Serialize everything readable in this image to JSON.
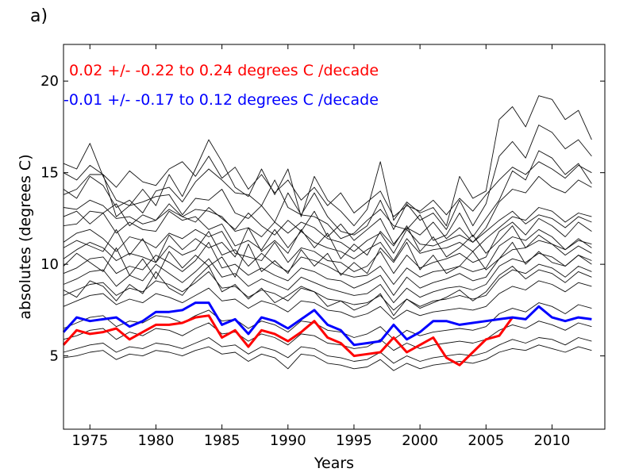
{
  "panel_label": "a)",
  "colors": {
    "red": "#ff0000",
    "blue": "#0000ff",
    "gray": "#111111",
    "axes": "#000000"
  },
  "chart_data": {
    "type": "line",
    "xlabel": "Years",
    "ylabel": "absolutes (degrees C)",
    "xlim": [
      1973,
      2014
    ],
    "ylim": [
      1,
      22
    ],
    "xticks": [
      1975,
      1980,
      1985,
      1990,
      1995,
      2000,
      2005,
      2010
    ],
    "yticks": [
      5,
      10,
      15,
      20
    ],
    "annotations": [
      {
        "text": "0.02 +/- -0.22 to  0.24 degrees C /decade",
        "color": "#ff0000"
      },
      {
        "text": "-0.01 +/- -0.17 to  0.12 degrees C /decade",
        "color": "#0000ff"
      }
    ],
    "x": [
      1973,
      1974,
      1975,
      1976,
      1977,
      1978,
      1979,
      1980,
      1981,
      1982,
      1983,
      1984,
      1985,
      1986,
      1987,
      1988,
      1989,
      1990,
      1991,
      1992,
      1993,
      1994,
      1995,
      1996,
      1997,
      1998,
      1999,
      2000,
      2001,
      2002,
      2003,
      2004,
      2005,
      2006,
      2007,
      2008,
      2009,
      2010,
      2011,
      2012,
      2013
    ],
    "series": [
      {
        "color": "#ff0000",
        "highlight": true,
        "values": [
          5.6,
          6.4,
          6.2,
          6.3,
          6.5,
          5.9,
          6.3,
          6.7,
          6.7,
          6.8,
          7.1,
          7.2,
          6.0,
          6.4,
          5.5,
          6.4,
          6.2,
          5.8,
          6.3,
          6.9,
          6.0,
          5.7,
          5.0,
          5.1,
          5.2,
          6.0,
          5.2,
          5.6,
          6.0,
          4.9,
          4.5,
          5.2,
          5.9,
          6.1,
          7.1,
          null,
          null,
          null,
          null,
          null,
          null
        ]
      },
      {
        "color": "#0000ff",
        "highlight": true,
        "values": [
          6.3,
          7.1,
          6.9,
          7.0,
          7.1,
          6.6,
          6.9,
          7.4,
          7.4,
          7.5,
          7.9,
          7.9,
          6.7,
          7.0,
          6.2,
          7.1,
          6.9,
          6.5,
          7.0,
          7.5,
          6.7,
          6.4,
          5.6,
          5.7,
          5.8,
          6.7,
          5.9,
          6.3,
          6.9,
          6.9,
          6.7,
          6.8,
          6.9,
          7.0,
          7.1,
          7.0,
          7.7,
          7.1,
          6.9,
          7.1,
          7.0
        ]
      },
      {
        "color": "#111111",
        "values": [
          15.5,
          15.2,
          16.6,
          14.8,
          13.5,
          13.2,
          14.1,
          13.2,
          14.9,
          13.7,
          15.2,
          16.8,
          15.6,
          14.2,
          13.7,
          15.2,
          13.8,
          15.2,
          12.6,
          14.8,
          13.5,
          12.9,
          12.1,
          13.0,
          15.6,
          12.4,
          13.4,
          12.8,
          13.1,
          12.1,
          14.8,
          13.6,
          14.0,
          17.9,
          18.6,
          17.5,
          19.2,
          19.0,
          17.9,
          18.4,
          16.8
        ]
      },
      {
        "color": "#111111",
        "values": [
          14.1,
          13.6,
          14.8,
          14.3,
          13.1,
          13.5,
          12.8,
          14.0,
          14.2,
          13.4,
          14.5,
          15.2,
          14.6,
          13.9,
          13.8,
          13.2,
          14.6,
          13.1,
          12.7,
          13.9,
          12.6,
          11.8,
          11.6,
          12.1,
          13.5,
          11.9,
          13.3,
          12.4,
          12.8,
          11.9,
          13.5,
          12.1,
          13.3,
          15.9,
          16.7,
          15.8,
          17.6,
          17.2,
          16.3,
          16.8,
          15.9
        ]
      },
      {
        "color": "#111111",
        "values": [
          13.8,
          14.1,
          14.9,
          14.9,
          12.6,
          13.2,
          13.4,
          13.7,
          13.8,
          12.7,
          13.6,
          13.5,
          14.1,
          12.8,
          12.5,
          13.2,
          12.3,
          13.9,
          12.7,
          12.6,
          12.2,
          11.4,
          11.7,
          12.4,
          13.0,
          12.1,
          11.9,
          12.7,
          11.3,
          11.6,
          12.8,
          11.5,
          12.5,
          13.5,
          15.1,
          14.6,
          16.2,
          15.8,
          14.9,
          15.5,
          14.4
        ]
      },
      {
        "color": "#111111",
        "values": [
          13.1,
          13.0,
          13.5,
          13.2,
          12.5,
          12.6,
          12.2,
          12.4,
          13.3,
          12.6,
          13.0,
          12.9,
          12.6,
          11.8,
          12.0,
          11.5,
          12.3,
          11.7,
          12.3,
          12.0,
          11.4,
          11.2,
          10.7,
          11.3,
          11.7,
          10.6,
          11.9,
          11.1,
          11.0,
          11.3,
          11.6,
          11.2,
          12.0,
          13.4,
          14.1,
          13.9,
          14.8,
          14.2,
          13.9,
          14.6,
          14.2
        ]
      },
      {
        "color": "#111111",
        "values": [
          12.1,
          12.2,
          12.9,
          12.8,
          11.7,
          12.3,
          11.9,
          11.8,
          12.9,
          12.4,
          12.6,
          11.9,
          12.2,
          11.0,
          11.3,
          10.8,
          11.9,
          10.9,
          11.8,
          11.2,
          10.9,
          10.7,
          10.3,
          10.8,
          11.2,
          10.2,
          11.4,
          10.6,
          10.8,
          10.9,
          11.2,
          10.7,
          11.4,
          12.0,
          12.6,
          12.4,
          13.1,
          12.9,
          12.3,
          12.8,
          12.6
        ]
      },
      {
        "color": "#111111",
        "values": [
          11.2,
          11.7,
          11.9,
          11.4,
          10.7,
          11.5,
          11.3,
          10.9,
          11.7,
          11.4,
          11.9,
          11.5,
          11.8,
          10.6,
          10.4,
          10.2,
          11.2,
          10.1,
          10.9,
          10.7,
          10.2,
          10.1,
          9.6,
          9.9,
          10.7,
          9.5,
          10.5,
          9.8,
          10.1,
          10.3,
          10.6,
          10.1,
          10.4,
          11.8,
          12.3,
          11.6,
          12.5,
          12.1,
          11.5,
          12.3,
          11.8
        ]
      },
      {
        "color": "#111111",
        "values": [
          10.3,
          10.8,
          11.2,
          10.9,
          10.2,
          10.6,
          10.4,
          10.1,
          11.0,
          10.5,
          10.8,
          11.8,
          10.5,
          10.8,
          9.9,
          10.6,
          10.0,
          9.6,
          10.4,
          10.2,
          9.9,
          9.5,
          9.3,
          9.4,
          9.9,
          8.9,
          9.8,
          9.3,
          9.6,
          9.7,
          9.9,
          9.6,
          9.8,
          11.0,
          11.5,
          11.3,
          11.9,
          11.5,
          10.8,
          11.3,
          11.1
        ]
      },
      {
        "color": "#111111",
        "values": [
          9.5,
          9.8,
          10.3,
          10.4,
          9.5,
          9.9,
          9.7,
          10.5,
          10.1,
          9.6,
          10.2,
          11.2,
          9.8,
          10.0,
          9.4,
          9.8,
          9.4,
          9.1,
          9.8,
          9.6,
          9.2,
          9.1,
          8.7,
          9.0,
          9.4,
          8.3,
          9.3,
          8.7,
          9.0,
          9.2,
          9.5,
          9.1,
          9.3,
          10.3,
          10.8,
          10.9,
          11.3,
          11.1,
          10.5,
          11.0,
          10.6
        ]
      },
      {
        "color": "#111111",
        "values": [
          8.9,
          9.2,
          9.6,
          9.7,
          8.8,
          9.4,
          9.1,
          10.0,
          9.5,
          9.0,
          9.6,
          10.3,
          9.3,
          9.5,
          8.8,
          9.2,
          8.9,
          8.6,
          9.3,
          9.0,
          8.7,
          8.5,
          8.3,
          8.4,
          8.9,
          7.9,
          8.7,
          8.2,
          8.5,
          8.7,
          8.8,
          8.6,
          8.9,
          9.9,
          10.3,
          10.1,
          10.6,
          10.4,
          9.9,
          10.5,
          10.2
        ]
      },
      {
        "color": "#111111",
        "values": [
          8.3,
          8.6,
          8.9,
          9.0,
          8.3,
          8.7,
          8.5,
          9.1,
          8.9,
          8.5,
          9.0,
          9.6,
          8.7,
          8.8,
          8.2,
          8.6,
          8.4,
          8.0,
          8.7,
          8.5,
          8.1,
          8.0,
          7.8,
          7.9,
          8.3,
          7.5,
          8.1,
          7.7,
          8.0,
          8.1,
          8.3,
          8.1,
          8.3,
          9.2,
          9.7,
          9.5,
          10.0,
          9.8,
          9.3,
          9.9,
          9.6
        ]
      },
      {
        "color": "#111111",
        "values": [
          7.7,
          8.0,
          8.3,
          8.4,
          7.8,
          8.1,
          7.9,
          8.4,
          8.2,
          7.9,
          8.3,
          8.7,
          8.0,
          8.1,
          7.6,
          8.0,
          7.8,
          7.4,
          8.0,
          7.9,
          7.5,
          7.4,
          7.1,
          7.3,
          7.7,
          7.0,
          7.5,
          7.2,
          7.4,
          7.5,
          7.6,
          7.5,
          7.7,
          8.4,
          8.8,
          8.6,
          9.1,
          8.9,
          8.5,
          9.0,
          8.8
        ]
      },
      {
        "color": "#111111",
        "values": [
          6.5,
          6.8,
          7.1,
          7.2,
          6.6,
          6.9,
          6.8,
          7.2,
          7.1,
          6.8,
          7.2,
          7.5,
          6.9,
          7.0,
          6.5,
          6.9,
          6.7,
          6.3,
          6.9,
          6.8,
          6.4,
          6.3,
          6.0,
          6.2,
          6.6,
          5.9,
          6.4,
          6.1,
          6.3,
          6.4,
          6.5,
          6.4,
          6.6,
          7.3,
          7.6,
          7.4,
          7.9,
          7.7,
          7.3,
          7.8,
          7.6
        ]
      },
      {
        "color": "#111111",
        "values": [
          5.9,
          6.1,
          6.4,
          6.5,
          5.9,
          6.3,
          6.1,
          6.5,
          6.4,
          6.1,
          6.5,
          6.8,
          6.2,
          6.3,
          5.8,
          6.2,
          6.0,
          5.6,
          6.2,
          6.1,
          5.7,
          5.6,
          5.4,
          5.5,
          5.9,
          5.3,
          5.7,
          5.4,
          5.6,
          5.7,
          5.8,
          5.7,
          5.9,
          6.4,
          6.7,
          6.5,
          6.9,
          6.7,
          6.4,
          6.8,
          6.6
        ]
      },
      {
        "color": "#111111",
        "values": [
          5.2,
          5.4,
          5.6,
          5.7,
          5.2,
          5.5,
          5.4,
          5.7,
          5.6,
          5.4,
          5.7,
          6.0,
          5.5,
          5.6,
          5.1,
          5.5,
          5.3,
          4.9,
          5.5,
          5.4,
          5.0,
          4.9,
          4.7,
          4.8,
          5.2,
          4.6,
          5.0,
          4.7,
          4.9,
          5.0,
          5.1,
          5.0,
          5.2,
          5.6,
          5.9,
          5.7,
          6.0,
          5.9,
          5.6,
          6.0,
          5.8
        ]
      },
      {
        "color": "#111111",
        "values": [
          4.9,
          5.0,
          5.2,
          5.3,
          4.8,
          5.1,
          5.0,
          5.3,
          5.2,
          5.0,
          5.3,
          5.5,
          5.1,
          5.2,
          4.7,
          5.1,
          4.9,
          4.3,
          5.1,
          5.0,
          4.6,
          4.5,
          4.3,
          4.4,
          4.8,
          4.2,
          4.6,
          4.3,
          4.5,
          4.6,
          4.7,
          4.6,
          4.8,
          5.2,
          5.4,
          5.3,
          5.6,
          5.4,
          5.2,
          5.5,
          5.3
        ]
      },
      {
        "color": "#111111",
        "values": [
          10.9,
          11.3,
          11.0,
          10.7,
          11.9,
          10.5,
          11.4,
          10.1,
          11.6,
          10.8,
          11.4,
          10.9,
          11.2,
          10.4,
          12.0,
          10.7,
          11.3,
          10.6,
          11.9,
          10.9,
          11.7,
          10.3,
          11.1,
          10.5,
          11.8,
          11.0,
          12.1,
          10.7,
          11.5,
          10.4,
          10.9,
          11.6,
          10.6,
          11.3,
          12.1,
          10.9,
          11.6,
          11.1,
          10.8,
          11.4,
          10.9
        ]
      },
      {
        "color": "#111111",
        "values": [
          9.9,
          10.6,
          10.1,
          9.6,
          10.9,
          9.4,
          10.3,
          9.2,
          10.7,
          9.8,
          10.5,
          9.9,
          10.4,
          9.3,
          11.1,
          9.6,
          10.2,
          9.5,
          10.8,
          9.9,
          10.6,
          9.4,
          10.1,
          9.5,
          10.9,
          10.1,
          11.2,
          9.7,
          10.5,
          9.5,
          9.9,
          10.7,
          9.7,
          10.3,
          11.2,
          10.0,
          10.7,
          10.1,
          9.9,
          10.5,
          10.0
        ]
      },
      {
        "color": "#111111",
        "values": [
          12.6,
          12.9,
          12.2,
          12.8,
          13.3,
          12.1,
          12.7,
          12.4,
          13.0,
          12.6,
          12.3,
          13.1,
          12.5,
          11.9,
          12.8,
          12.1,
          11.6,
          12.4,
          11.8,
          12.9,
          11.5,
          12.2,
          11.3,
          11.9,
          12.5,
          11.1,
          12.0,
          11.6,
          12.3,
          11.4,
          12.0,
          11.2,
          11.8,
          12.4,
          12.9,
          12.2,
          12.7,
          12.5,
          12.0,
          12.6,
          12.3
        ]
      },
      {
        "color": "#111111",
        "values": [
          15.0,
          14.6,
          15.4,
          14.9,
          14.2,
          15.1,
          14.5,
          14.3,
          15.2,
          15.6,
          14.8,
          15.9,
          14.7,
          15.3,
          14.1,
          14.9,
          13.9,
          14.6,
          13.5,
          14.2,
          13.2,
          13.9,
          12.8,
          13.4,
          14.0,
          12.6,
          13.2,
          12.9,
          13.5,
          12.7,
          13.6,
          12.9,
          13.8,
          14.6,
          15.3,
          14.9,
          15.6,
          15.2,
          14.7,
          15.4,
          15.0
        ]
      },
      {
        "color": "#111111",
        "values": [
          8.6,
          8.2,
          9.1,
          8.8,
          8.0,
          8.9,
          8.4,
          9.6,
          8.7,
          8.3,
          9.2,
          9.9,
          8.5,
          8.9,
          8.1,
          8.7,
          7.9,
          8.3,
          8.8,
          8.5,
          7.7,
          8.0,
          7.5,
          7.8,
          8.4,
          7.2,
          8.1,
          7.6,
          7.9,
          8.2,
          8.6,
          8.0,
          8.5,
          9.4,
          9.9,
          9.2,
          9.7,
          9.5,
          9.0,
          9.6,
          9.3
        ]
      }
    ]
  }
}
